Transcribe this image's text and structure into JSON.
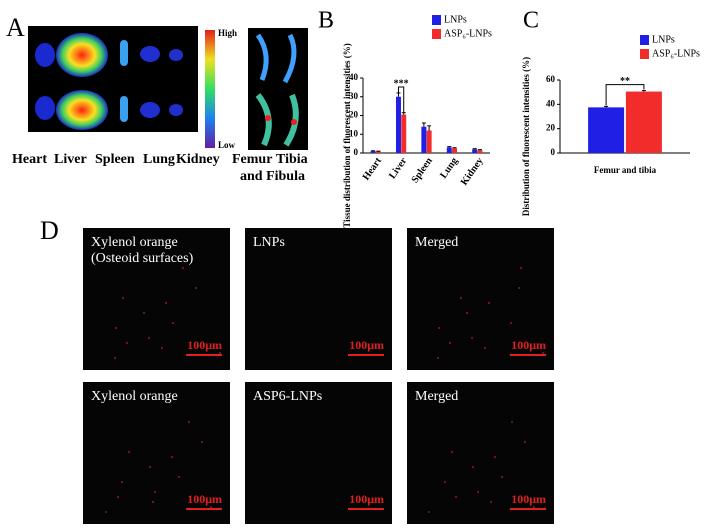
{
  "panel_a": {
    "label": "A",
    "colorbar_high": "High",
    "colorbar_low": "Low",
    "organs": [
      "Heart",
      "Liver",
      "Spleen",
      "Lung",
      "Kidney"
    ],
    "bone_labels": [
      "Femur",
      "Tibia",
      "and Fibula"
    ]
  },
  "chart_data": [
    {
      "type": "bar",
      "panel_label": "B",
      "y_label": "Tissue distribution of fluorescent intensities (%)",
      "categories": [
        "Heart",
        "Liver",
        "Spleen",
        "Lung",
        "Kidney"
      ],
      "series": [
        {
          "name": "LNPs",
          "color": "#1f1fe6",
          "values": [
            1,
            30,
            14,
            3,
            2
          ],
          "errors": [
            0.2,
            2,
            2,
            0.4,
            0.3
          ]
        },
        {
          "name": "ASP₆-LNPs",
          "color": "#f22b2b",
          "values": [
            0.8,
            20.5,
            12,
            2.5,
            1.5
          ],
          "errors": [
            0.2,
            1,
            2.5,
            0.3,
            0.3
          ]
        }
      ],
      "ylim": [
        0,
        40
      ],
      "yticks": [
        0,
        10,
        20,
        30,
        40
      ],
      "annotation": "***"
    },
    {
      "type": "bar",
      "panel_label": "C",
      "y_label": "Distribution of fluorescent intensities (%)",
      "categories": [
        "Femur and tibia"
      ],
      "series": [
        {
          "name": "LNPs",
          "color": "#1f1fe6",
          "values": [
            37.5
          ],
          "errors": [
            0.8
          ]
        },
        {
          "name": "ASP₆-LNPs",
          "color": "#f22b2b",
          "values": [
            50.5
          ],
          "errors": [
            0.8
          ]
        }
      ],
      "ylim": [
        0,
        60
      ],
      "yticks": [
        0,
        20,
        40,
        60
      ],
      "annotation": "**"
    }
  ],
  "panel_d": {
    "label": "D",
    "images": [
      {
        "caption": [
          "Xylenol orange",
          "(Osteoid surfaces)"
        ],
        "scale_bar": "100μm"
      },
      {
        "caption": [
          "LNPs"
        ],
        "scale_bar": "100μm"
      },
      {
        "caption": [
          "Merged"
        ],
        "scale_bar": "100μm"
      },
      {
        "caption": [
          "Xylenol orange"
        ],
        "scale_bar": "100μm"
      },
      {
        "caption": [
          "ASP6-LNPs"
        ],
        "scale_bar": "100μm"
      },
      {
        "caption": [
          "Merged"
        ],
        "scale_bar": "100μm"
      }
    ]
  }
}
